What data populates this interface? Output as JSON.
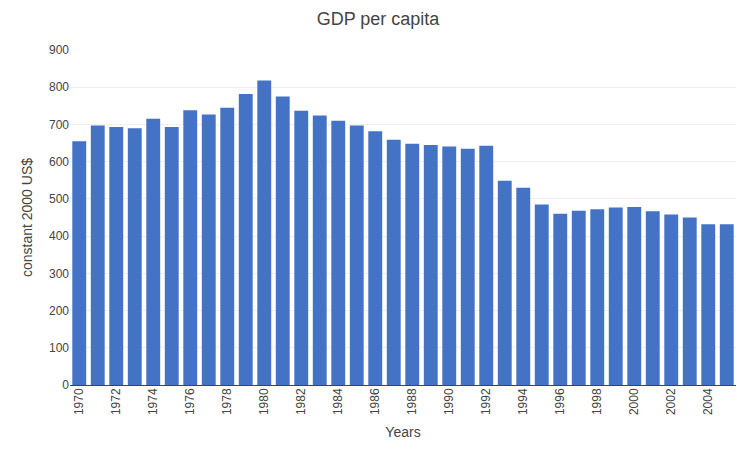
{
  "chart_data": {
    "type": "bar",
    "title": "GDP per capita",
    "xlabel": "Years",
    "ylabel": "constant 2000 US$",
    "categories": [
      "1970",
      null,
      "1972",
      null,
      "1974",
      null,
      "1976",
      null,
      "1978",
      null,
      "1980",
      null,
      "1982",
      null,
      "1984",
      null,
      "1986",
      null,
      "1988",
      null,
      "1990",
      null,
      "1992",
      null,
      "1994",
      null,
      "1996",
      null,
      "1998",
      null,
      "2000",
      null,
      "2002",
      null,
      "2004",
      null
    ],
    "values": [
      655,
      697,
      693,
      690,
      715,
      693,
      738,
      727,
      745,
      782,
      818,
      775,
      737,
      724,
      710,
      697,
      682,
      659,
      648,
      645,
      641,
      635,
      643,
      549,
      530,
      485,
      460,
      468,
      472,
      477,
      478,
      467,
      458,
      450,
      432,
      432
    ],
    "color": "#4472C4",
    "ylim": [
      0,
      900
    ],
    "yticks": [
      0,
      100,
      200,
      300,
      400,
      500,
      600,
      700,
      800,
      900
    ],
    "grid": true
  }
}
